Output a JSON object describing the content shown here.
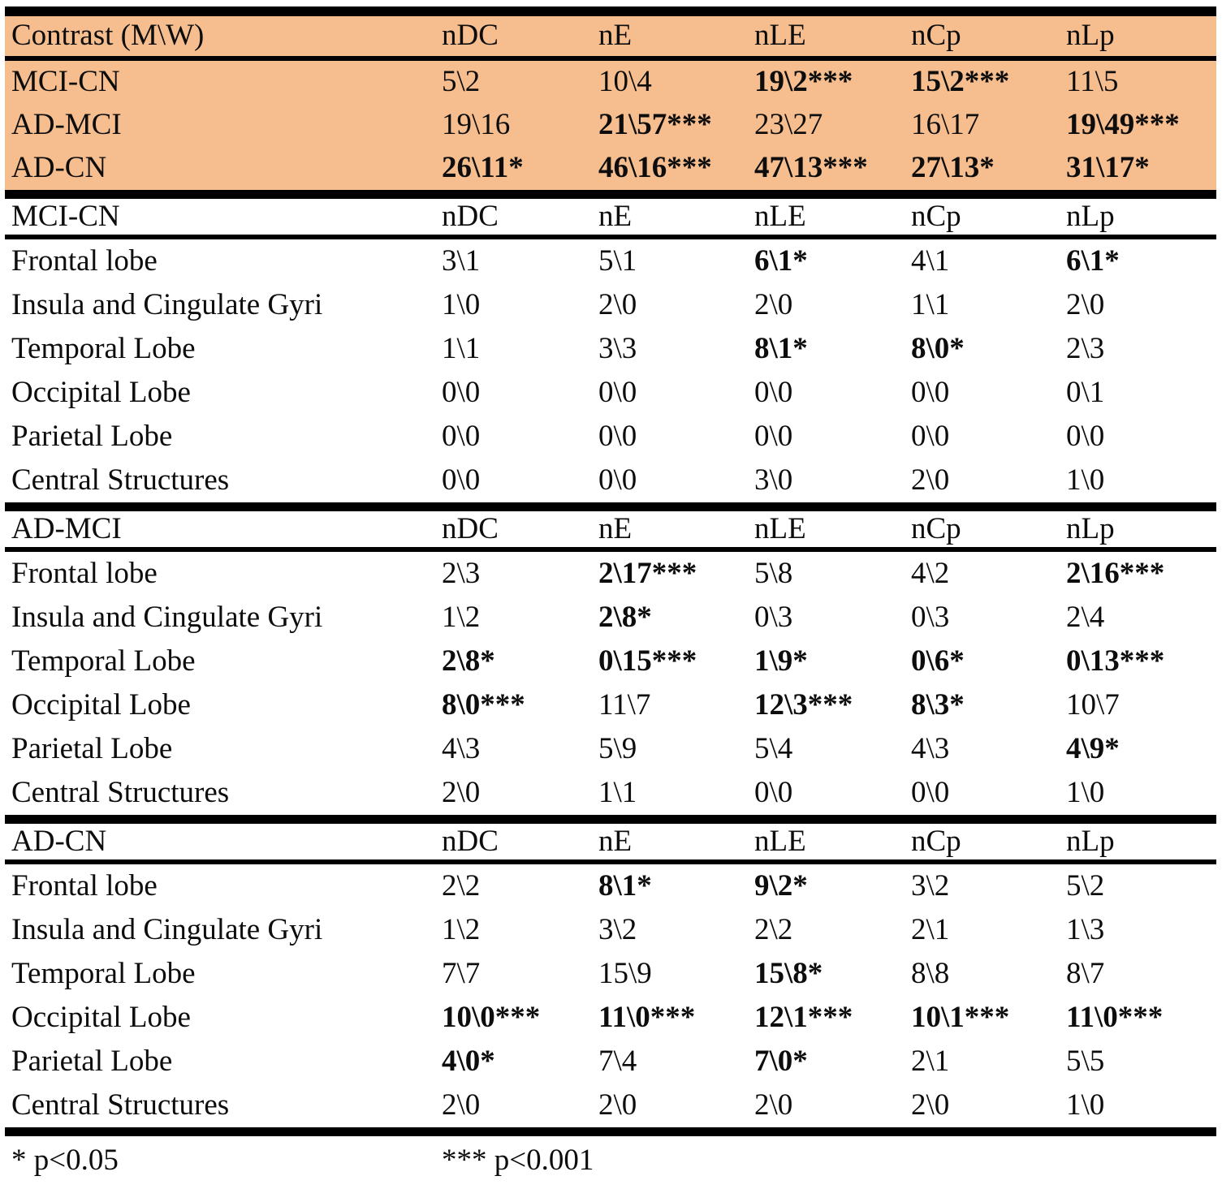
{
  "colors": {
    "highlight_bg": "#F6BE8F",
    "line": "#000000",
    "text": "#0d0d0d"
  },
  "top_table": {
    "header": {
      "label": "Contrast (M\\W)",
      "columns": [
        "nDC",
        "nE",
        "nLE",
        "nCp",
        "nLp"
      ]
    },
    "rows": [
      {
        "label": {
          "t": "MCI-CN",
          "b": false
        },
        "cells": [
          {
            "t": "5\\2",
            "b": false
          },
          {
            "t": "10\\4",
            "b": false
          },
          {
            "t": "19\\2***",
            "b": true
          },
          {
            "t": "15\\2***",
            "b": true
          },
          {
            "t": "11\\5",
            "b": false
          }
        ]
      },
      {
        "label": {
          "t": "AD-MCI",
          "b": false
        },
        "cells": [
          {
            "t": "19\\16",
            "b": false
          },
          {
            "t": "21\\57***",
            "b": true
          },
          {
            "t": "23\\27",
            "b": false
          },
          {
            "t": "16\\17",
            "b": false
          },
          {
            "t": "19\\49***",
            "b": true
          }
        ]
      },
      {
        "label": {
          "t": "AD-CN",
          "b": false
        },
        "cells": [
          {
            "t": "26\\11*",
            "b": true
          },
          {
            "t": "46\\16***",
            "b": true
          },
          {
            "t": "47\\13***",
            "b": true
          },
          {
            "t": "27\\13*",
            "b": true
          },
          {
            "t": "31\\17*",
            "b": true
          }
        ]
      }
    ]
  },
  "sections": [
    {
      "title": "MCI-CN",
      "columns": [
        "nDC",
        "nE",
        "nLE",
        "nCp",
        "nLp"
      ],
      "rows": [
        {
          "label": {
            "t": "Frontal lobe",
            "b": false
          },
          "cells": [
            {
              "t": "3\\1",
              "b": false
            },
            {
              "t": "5\\1",
              "b": false
            },
            {
              "t": "6\\1*",
              "b": true
            },
            {
              "t": "4\\1",
              "b": false
            },
            {
              "t": "6\\1*",
              "b": true
            }
          ]
        },
        {
          "label": {
            "t": "Insula and Cingulate Gyri",
            "b": false
          },
          "cells": [
            {
              "t": "1\\0",
              "b": false
            },
            {
              "t": "2\\0",
              "b": false
            },
            {
              "t": "2\\0",
              "b": false
            },
            {
              "t": "1\\1",
              "b": false
            },
            {
              "t": "2\\0",
              "b": false
            }
          ]
        },
        {
          "label": {
            "t": "Temporal Lobe",
            "b": false
          },
          "cells": [
            {
              "t": "1\\1",
              "b": false
            },
            {
              "t": "3\\3",
              "b": false
            },
            {
              "t": "8\\1*",
              "b": true
            },
            {
              "t": "8\\0*",
              "b": true
            },
            {
              "t": "2\\3",
              "b": false
            }
          ]
        },
        {
          "label": {
            "t": "Occipital Lobe",
            "b": false
          },
          "cells": [
            {
              "t": "0\\0",
              "b": false
            },
            {
              "t": "0\\0",
              "b": false
            },
            {
              "t": "0\\0",
              "b": false
            },
            {
              "t": "0\\0",
              "b": false
            },
            {
              "t": "0\\1",
              "b": false
            }
          ]
        },
        {
          "label": {
            "t": "Parietal Lobe",
            "b": false
          },
          "cells": [
            {
              "t": "0\\0",
              "b": false
            },
            {
              "t": "0\\0",
              "b": false
            },
            {
              "t": "0\\0",
              "b": false
            },
            {
              "t": "0\\0",
              "b": false
            },
            {
              "t": "0\\0",
              "b": false
            }
          ]
        },
        {
          "label": {
            "t": "Central Structures",
            "b": false
          },
          "cells": [
            {
              "t": "0\\0",
              "b": false
            },
            {
              "t": "0\\0",
              "b": false
            },
            {
              "t": "3\\0",
              "b": false
            },
            {
              "t": "2\\0",
              "b": false
            },
            {
              "t": "1\\0",
              "b": false
            }
          ]
        }
      ]
    },
    {
      "title": "AD-MCI",
      "columns": [
        "nDC",
        "nE",
        "nLE",
        "nCp",
        "nLp"
      ],
      "rows": [
        {
          "label": {
            "t": "Frontal lobe",
            "b": false
          },
          "cells": [
            {
              "t": "2\\3",
              "b": false
            },
            {
              "t": "2\\17***",
              "b": true
            },
            {
              "t": "5\\8",
              "b": false
            },
            {
              "t": "4\\2",
              "b": false
            },
            {
              "t": "2\\16***",
              "b": true
            }
          ]
        },
        {
          "label": {
            "t": "Insula and Cingulate Gyri",
            "b": false
          },
          "cells": [
            {
              "t": "1\\2",
              "b": false
            },
            {
              "t": "2\\8*",
              "b": true
            },
            {
              "t": "0\\3",
              "b": false
            },
            {
              "t": "0\\3",
              "b": false
            },
            {
              "t": "2\\4",
              "b": false
            }
          ]
        },
        {
          "label": {
            "t": "Temporal Lobe",
            "b": false
          },
          "cells": [
            {
              "t": "2\\8*",
              "b": true
            },
            {
              "t": "0\\15***",
              "b": true
            },
            {
              "t": "1\\9*",
              "b": true
            },
            {
              "t": "0\\6*",
              "b": true
            },
            {
              "t": "0\\13***",
              "b": true
            }
          ]
        },
        {
          "label": {
            "t": "Occipital Lobe",
            "b": false
          },
          "cells": [
            {
              "t": "8\\0***",
              "b": true
            },
            {
              "t": "11\\7",
              "b": false
            },
            {
              "t": "12\\3***",
              "b": true
            },
            {
              "t": "8\\3*",
              "b": true
            },
            {
              "t": "10\\7",
              "b": false
            }
          ]
        },
        {
          "label": {
            "t": "Parietal Lobe",
            "b": false
          },
          "cells": [
            {
              "t": "4\\3",
              "b": false
            },
            {
              "t": "5\\9",
              "b": false
            },
            {
              "t": "5\\4",
              "b": false
            },
            {
              "t": "4\\3",
              "b": false
            },
            {
              "t": "4\\9*",
              "b": true
            }
          ]
        },
        {
          "label": {
            "t": "Central Structures",
            "b": false
          },
          "cells": [
            {
              "t": "2\\0",
              "b": false
            },
            {
              "t": "1\\1",
              "b": false
            },
            {
              "t": "0\\0",
              "b": false
            },
            {
              "t": "0\\0",
              "b": false
            },
            {
              "t": "1\\0",
              "b": false
            }
          ]
        }
      ]
    },
    {
      "title": "AD-CN",
      "columns": [
        "nDC",
        "nE",
        "nLE",
        "nCp",
        "nLp"
      ],
      "rows": [
        {
          "label": {
            "t": "Frontal lobe",
            "b": false
          },
          "cells": [
            {
              "t": "2\\2",
              "b": false
            },
            {
              "t": "8\\1*",
              "b": true
            },
            {
              "t": "9\\2*",
              "b": true
            },
            {
              "t": "3\\2",
              "b": false
            },
            {
              "t": "5\\2",
              "b": false
            }
          ]
        },
        {
          "label": {
            "t": "Insula and Cingulate Gyri",
            "b": false
          },
          "cells": [
            {
              "t": "1\\2",
              "b": false
            },
            {
              "t": "3\\2",
              "b": false
            },
            {
              "t": "2\\2",
              "b": false
            },
            {
              "t": "2\\1",
              "b": false
            },
            {
              "t": "1\\3",
              "b": false
            }
          ]
        },
        {
          "label": {
            "t": "Temporal Lobe",
            "b": false
          },
          "cells": [
            {
              "t": "7\\7",
              "b": false
            },
            {
              "t": "15\\9",
              "b": false
            },
            {
              "t": "15\\8*",
              "b": true
            },
            {
              "t": "8\\8",
              "b": false
            },
            {
              "t": "8\\7",
              "b": false
            }
          ]
        },
        {
          "label": {
            "t": "Occipital Lobe",
            "b": false
          },
          "cells": [
            {
              "t": "10\\0***",
              "b": true
            },
            {
              "t": "11\\0***",
              "b": true
            },
            {
              "t": "12\\1***",
              "b": true
            },
            {
              "t": "10\\1***",
              "b": true
            },
            {
              "t": "11\\0***",
              "b": true
            }
          ]
        },
        {
          "label": {
            "t": "Parietal Lobe",
            "b": false
          },
          "cells": [
            {
              "t": "4\\0*",
              "b": true
            },
            {
              "t": "7\\4",
              "b": false
            },
            {
              "t": "7\\0*",
              "b": true
            },
            {
              "t": "2\\1",
              "b": false
            },
            {
              "t": "5\\5",
              "b": false
            }
          ]
        },
        {
          "label": {
            "t": "Central Structures",
            "b": false
          },
          "cells": [
            {
              "t": "2\\0",
              "b": false
            },
            {
              "t": "2\\0",
              "b": false
            },
            {
              "t": "2\\0",
              "b": false
            },
            {
              "t": "2\\0",
              "b": false
            },
            {
              "t": "1\\0",
              "b": false
            }
          ]
        }
      ]
    }
  ],
  "footnotes": {
    "p05": "* p<0.05",
    "p001": "*** p<0.001"
  }
}
